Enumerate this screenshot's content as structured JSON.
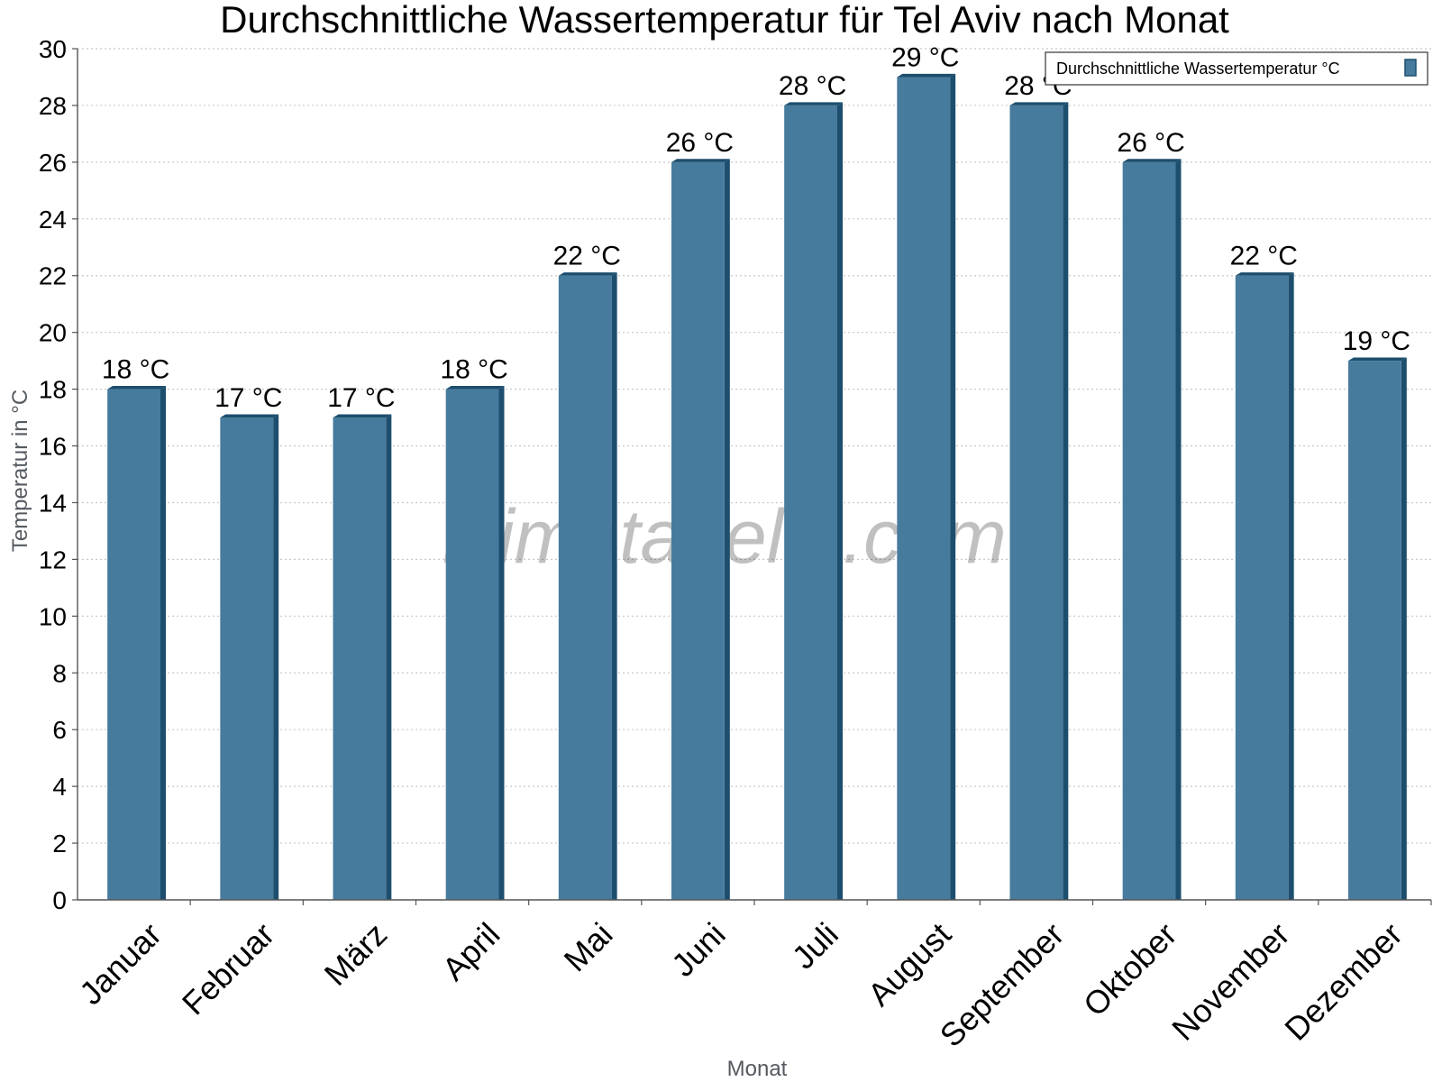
{
  "chart_data": {
    "type": "bar",
    "title": "Durchschnittliche Wassertemperatur für Tel Aviv nach Monat",
    "xlabel": "Monat",
    "ylabel": "Temperatur in °C",
    "ylim": [
      0,
      30
    ],
    "ytick_step": 2,
    "grid": true,
    "legend_position": "top-right",
    "categories": [
      "Januar",
      "Februar",
      "März",
      "April",
      "Mai",
      "Juni",
      "Juli",
      "August",
      "September",
      "Oktober",
      "November",
      "Dezember"
    ],
    "series": [
      {
        "name": "Durchschnittliche Wassertemperatur °C",
        "values": [
          18,
          17,
          17,
          18,
          22,
          26,
          28,
          29,
          28,
          26,
          22,
          19
        ],
        "labels": [
          "18 °C",
          "17 °C",
          "17 °C",
          "18 °C",
          "22 °C",
          "26 °C",
          "28 °C",
          "29 °C",
          "28 °C",
          "26 °C",
          "22 °C",
          "19 °C"
        ]
      }
    ],
    "colors": {
      "bar": "#467b9d",
      "bar_dark": "#1d4e6e",
      "grid": "#c8c8c8",
      "axis": "#555555"
    }
  },
  "watermark": "klimatabelle.com"
}
